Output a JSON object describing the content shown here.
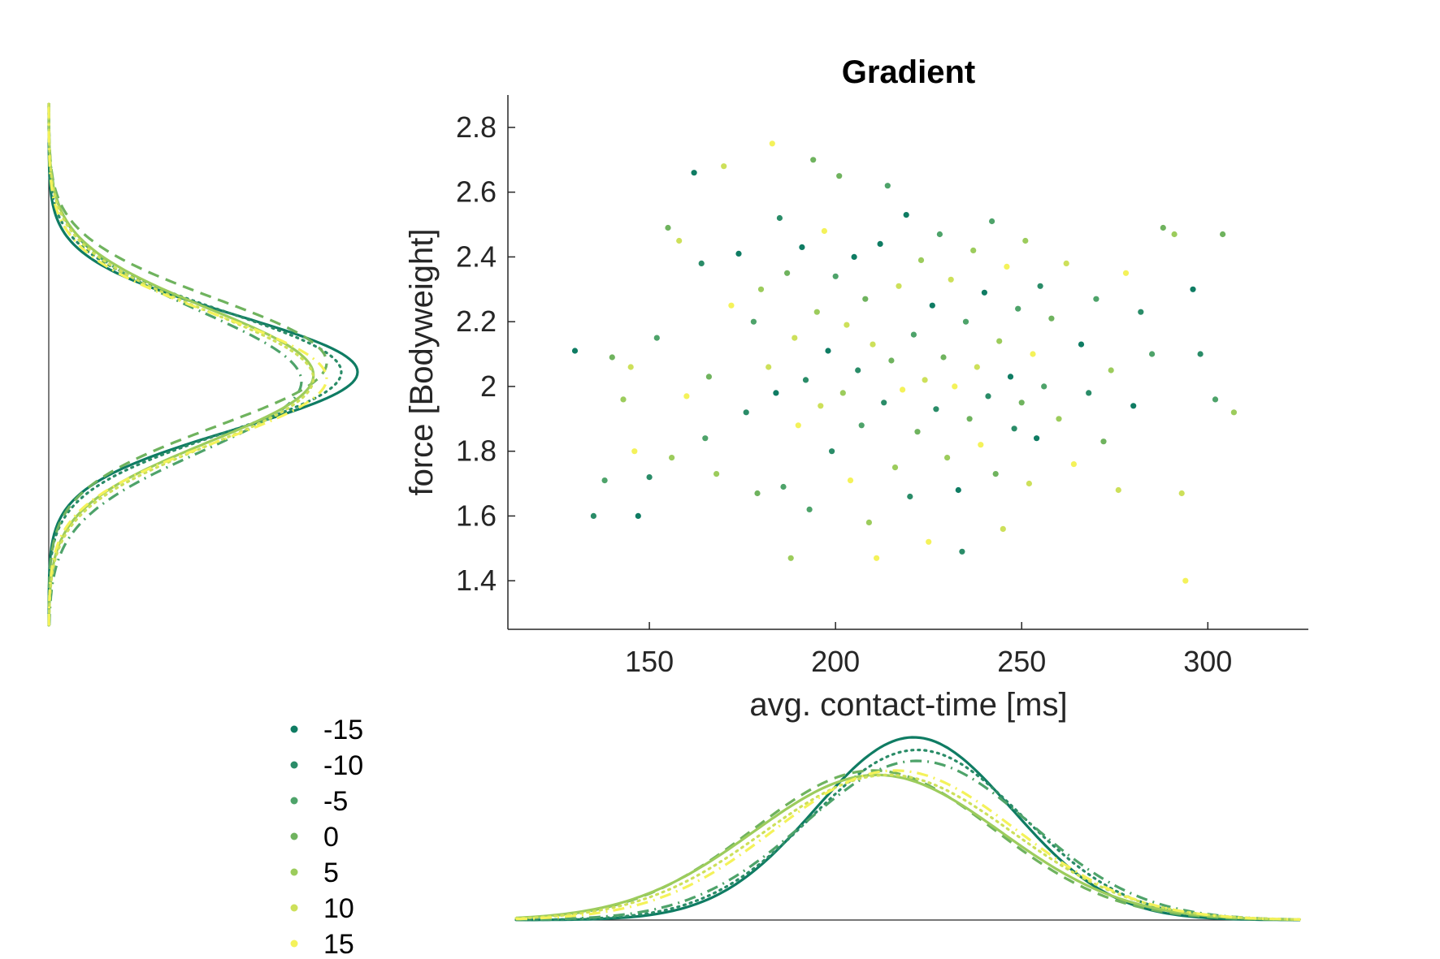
{
  "chart_data": {
    "type": "scatter",
    "title": "Gradient",
    "xlabel": "avg. contact-time [ms]",
    "ylabel": "force [Bodyweight]",
    "xlim": [
      112,
      327
    ],
    "ylim": [
      1.25,
      2.9
    ],
    "xticks": [
      150,
      200,
      250,
      300
    ],
    "yticks": [
      1.4,
      1.6,
      1.8,
      2,
      2.2,
      2.4,
      2.6,
      2.8
    ],
    "xtick_labels": [
      "150",
      "200",
      "250",
      "300"
    ],
    "ytick_labels": [
      "1.4",
      "1.6",
      "1.8",
      "2",
      "2.2",
      "2.4",
      "2.6",
      "2.8"
    ],
    "grid": false,
    "legend_position": "bottom-left",
    "series": [
      {
        "name": "-15",
        "color": "#0f7c63",
        "line_style": "solid",
        "x_mean": 221,
        "x_sd": 27,
        "y_mean": 2.05,
        "y_sd": 0.18
      },
      {
        "name": "-10",
        "color": "#2a8c68",
        "line_style": "dotted",
        "x_mean": 222,
        "x_sd": 29,
        "y_mean": 2.05,
        "y_sd": 0.19
      },
      {
        "name": "-5",
        "color": "#4ea36a",
        "line_style": "dashdot",
        "x_mean": 222,
        "x_sd": 31,
        "y_mean": 2.02,
        "y_sd": 0.22
      },
      {
        "name": "0",
        "color": "#6fb35e",
        "line_style": "dashed",
        "x_mean": 210,
        "x_sd": 33,
        "y_mean": 2.08,
        "y_sd": 0.2
      },
      {
        "name": "5",
        "color": "#9ccc5c",
        "line_style": "solid",
        "x_mean": 211,
        "x_sd": 34,
        "y_mean": 2.04,
        "y_sd": 0.21
      },
      {
        "name": "10",
        "color": "#cde05a",
        "line_style": "dotted",
        "x_mean": 214,
        "x_sd": 34,
        "y_mean": 2.03,
        "y_sd": 0.21
      },
      {
        "name": "15",
        "color": "#f4f25a",
        "line_style": "dashdot",
        "x_mean": 216,
        "x_sd": 33,
        "y_mean": 2.03,
        "y_sd": 0.2
      }
    ],
    "points": [
      [
        130,
        2.11
      ],
      [
        135,
        1.6
      ],
      [
        138,
        1.71
      ],
      [
        140,
        2.09
      ],
      [
        143,
        1.96
      ],
      [
        145,
        2.06
      ],
      [
        146,
        1.8
      ],
      [
        147,
        1.6
      ],
      [
        150,
        1.72
      ],
      [
        152,
        2.15
      ],
      [
        155,
        2.49
      ],
      [
        156,
        1.78
      ],
      [
        158,
        2.45
      ],
      [
        160,
        1.97
      ],
      [
        162,
        2.66
      ],
      [
        164,
        2.38
      ],
      [
        165,
        1.84
      ],
      [
        166,
        2.03
      ],
      [
        168,
        1.73
      ],
      [
        170,
        2.68
      ],
      [
        172,
        2.25
      ],
      [
        174,
        2.41
      ],
      [
        176,
        1.92
      ],
      [
        178,
        2.2
      ],
      [
        179,
        1.67
      ],
      [
        180,
        2.3
      ],
      [
        182,
        2.06
      ],
      [
        183,
        2.75
      ],
      [
        184,
        1.98
      ],
      [
        185,
        2.52
      ],
      [
        186,
        1.69
      ],
      [
        187,
        2.35
      ],
      [
        188,
        1.47
      ],
      [
        189,
        2.15
      ],
      [
        190,
        1.88
      ],
      [
        191,
        2.43
      ],
      [
        192,
        2.02
      ],
      [
        193,
        1.62
      ],
      [
        194,
        2.7
      ],
      [
        195,
        2.23
      ],
      [
        196,
        1.94
      ],
      [
        197,
        2.48
      ],
      [
        198,
        2.11
      ],
      [
        199,
        1.8
      ],
      [
        200,
        2.34
      ],
      [
        201,
        2.65
      ],
      [
        202,
        1.98
      ],
      [
        203,
        2.19
      ],
      [
        204,
        1.71
      ],
      [
        205,
        2.4
      ],
      [
        206,
        2.05
      ],
      [
        207,
        1.88
      ],
      [
        208,
        2.27
      ],
      [
        209,
        1.58
      ],
      [
        210,
        2.13
      ],
      [
        211,
        1.47
      ],
      [
        212,
        2.44
      ],
      [
        213,
        1.95
      ],
      [
        214,
        2.62
      ],
      [
        215,
        2.08
      ],
      [
        216,
        1.75
      ],
      [
        217,
        2.31
      ],
      [
        218,
        1.99
      ],
      [
        219,
        2.53
      ],
      [
        220,
        1.66
      ],
      [
        221,
        2.16
      ],
      [
        222,
        1.86
      ],
      [
        223,
        2.39
      ],
      [
        224,
        2.02
      ],
      [
        225,
        1.52
      ],
      [
        226,
        2.25
      ],
      [
        227,
        1.93
      ],
      [
        228,
        2.47
      ],
      [
        229,
        2.09
      ],
      [
        230,
        1.78
      ],
      [
        231,
        2.33
      ],
      [
        232,
        2.0
      ],
      [
        233,
        1.68
      ],
      [
        234,
        1.49
      ],
      [
        235,
        2.2
      ],
      [
        236,
        1.9
      ],
      [
        237,
        2.42
      ],
      [
        238,
        2.06
      ],
      [
        239,
        1.82
      ],
      [
        240,
        2.29
      ],
      [
        241,
        1.97
      ],
      [
        242,
        2.51
      ],
      [
        243,
        1.73
      ],
      [
        244,
        2.14
      ],
      [
        245,
        1.56
      ],
      [
        246,
        2.37
      ],
      [
        247,
        2.03
      ],
      [
        248,
        1.87
      ],
      [
        249,
        2.24
      ],
      [
        250,
        1.95
      ],
      [
        251,
        2.45
      ],
      [
        252,
        1.7
      ],
      [
        253,
        2.1
      ],
      [
        254,
        1.84
      ],
      [
        255,
        2.31
      ],
      [
        256,
        2.0
      ],
      [
        258,
        2.21
      ],
      [
        260,
        1.9
      ],
      [
        262,
        2.38
      ],
      [
        264,
        1.76
      ],
      [
        266,
        2.13
      ],
      [
        268,
        1.98
      ],
      [
        270,
        2.27
      ],
      [
        272,
        1.83
      ],
      [
        274,
        2.05
      ],
      [
        276,
        1.68
      ],
      [
        278,
        2.35
      ],
      [
        280,
        1.94
      ],
      [
        282,
        2.23
      ],
      [
        285,
        2.1
      ],
      [
        288,
        2.49
      ],
      [
        291,
        2.47
      ],
      [
        293,
        1.67
      ],
      [
        294,
        1.4
      ],
      [
        296,
        2.3
      ],
      [
        298,
        2.1
      ],
      [
        302,
        1.96
      ],
      [
        304,
        2.47
      ],
      [
        307,
        1.92
      ]
    ]
  },
  "legend": {
    "entries": [
      "-15",
      "-10",
      "-5",
      "0",
      "5",
      "10",
      "15"
    ]
  }
}
